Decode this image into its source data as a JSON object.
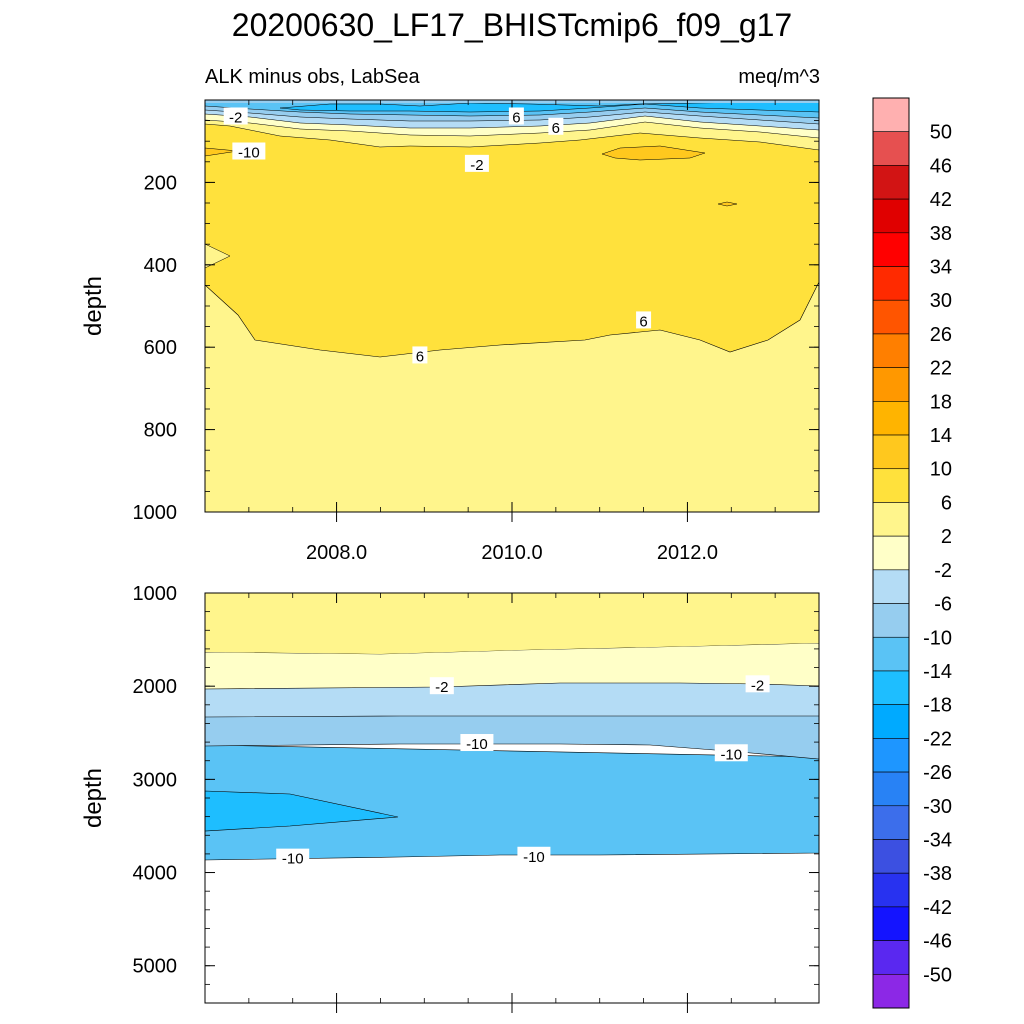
{
  "title": "20200630_LF17_BHISTcmip6_f09_g17",
  "top_left_label": "ALK minus obs, LabSea",
  "units": "meq/m^3",
  "chart_data": [
    {
      "type": "heatmap",
      "panel": "upper",
      "ylabel": "depth",
      "ylim": [
        0,
        1000
      ],
      "y_reversed": true,
      "xlim": [
        2006.5,
        2013.5
      ],
      "xticks": [
        "2008.0",
        "2010.0",
        "2012.0"
      ],
      "yticks": [
        "200",
        "400",
        "600",
        "800",
        "1000"
      ],
      "contour_labels": [
        "-2",
        "-10",
        "-2",
        "6",
        "6",
        "6",
        "6"
      ],
      "contour_label_pos": [
        [
          2006.85,
          40
        ],
        [
          2007.0,
          125
        ],
        [
          2009.6,
          155
        ],
        [
          2010.05,
          40
        ],
        [
          2010.5,
          65
        ],
        [
          2008.95,
          620
        ],
        [
          2011.5,
          535
        ]
      ],
      "regions": [
        {
          "range": "6 to 10",
          "depth_from": 30,
          "depth_to": 450,
          "note": "upper layer, base dips to ~620 m near 2008.5"
        },
        {
          "range": "2 to 6",
          "depth_from": 450,
          "depth_to": 1000
        },
        {
          "range": "10 to 14",
          "note": "small patch near 2011.5 at ~120 m"
        },
        {
          "range": "-2 to -14",
          "depth_from": 0,
          "depth_to": 60,
          "note": "surface negative anomaly"
        }
      ]
    },
    {
      "type": "heatmap",
      "panel": "lower",
      "ylabel": "depth",
      "ylim": [
        1000,
        5400
      ],
      "y_reversed": true,
      "xlim": [
        2006.5,
        2013.5
      ],
      "yticks": [
        "1000",
        "2000",
        "3000",
        "4000",
        "5000"
      ],
      "contour_labels": [
        "-2",
        "-2",
        "-10",
        "-10",
        "-10",
        "-10"
      ],
      "contour_label_pos": [
        [
          2009.2,
          2000
        ],
        [
          2012.8,
          1980
        ],
        [
          2009.6,
          2610
        ],
        [
          2012.5,
          2720
        ],
        [
          2007.5,
          3840
        ],
        [
          2010.25,
          3820
        ]
      ],
      "regions": [
        {
          "range": "2 to 6",
          "depth_from": 1000,
          "depth_to": 1630
        },
        {
          "range": "-2 to 2",
          "depth_from": 1630,
          "depth_to": 2000
        },
        {
          "range": "-6 to -2",
          "depth_from": 2000,
          "depth_to": 2300
        },
        {
          "range": "-10 to -6",
          "depth_from": 2300,
          "depth_to": 2620
        },
        {
          "range": "-14 to -10",
          "depth_from": 2620,
          "depth_to": 3860
        },
        {
          "range": "-18 to -14",
          "note": "wedge ~3100-3550 m at west edge"
        },
        {
          "range": "no data",
          "depth_from": 3860,
          "depth_to": 5400
        }
      ]
    }
  ],
  "colorbar": {
    "labels": [
      "50",
      "46",
      "42",
      "38",
      "34",
      "30",
      "26",
      "22",
      "18",
      "14",
      "10",
      "6",
      "2",
      "-2",
      "-6",
      "-10",
      "-14",
      "-18",
      "-22",
      "-26",
      "-30",
      "-34",
      "-38",
      "-42",
      "-46",
      "-50"
    ],
    "colors": [
      "#FFB0B0",
      "#E65050",
      "#D21414",
      "#E00000",
      "#FF0000",
      "#FF2A00",
      "#FF5500",
      "#FF7F00",
      "#FF9800",
      "#FFB400",
      "#FFC81E",
      "#FFE13C",
      "#FFF58C",
      "#FFFFC8",
      "#B4DCF5",
      "#96CDEF",
      "#5AC3F5",
      "#1EBEFF",
      "#00AAFF",
      "#1E96FF",
      "#2882F5",
      "#3C6EEB",
      "#3C50E1",
      "#2832F0",
      "#1414FF",
      "#5A28F0",
      "#8C28E6"
    ]
  }
}
